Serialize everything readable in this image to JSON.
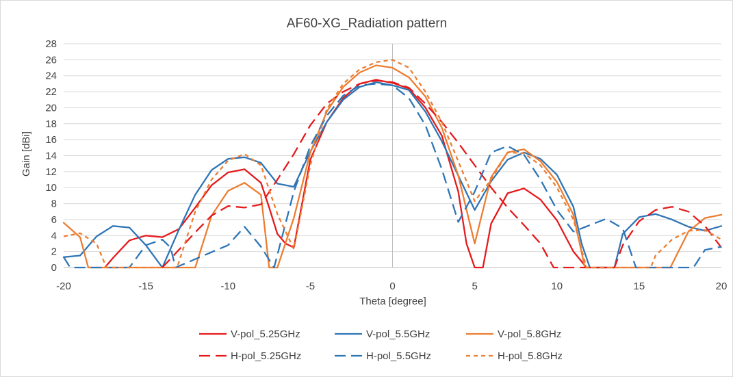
{
  "chart_data": {
    "type": "line",
    "title": "AF60-XG_Radiation pattern",
    "xlabel": "Theta [degree]",
    "ylabel": "Gain [dBi]",
    "xlim": [
      -20,
      20
    ],
    "ylim": [
      0,
      28
    ],
    "xticks": [
      -20,
      -15,
      -10,
      -5,
      0,
      5,
      10,
      15,
      20
    ],
    "yticks": [
      0,
      2,
      4,
      6,
      8,
      10,
      12,
      14,
      16,
      18,
      20,
      22,
      24,
      26,
      28
    ],
    "grid": true,
    "legend_position": "bottom",
    "series": [
      {
        "name": "V-pol_5.25GHz",
        "color": "#e41a1c",
        "dash": "solid",
        "x": [
          -17.5,
          -17,
          -16,
          -15,
          -14,
          -13,
          -12,
          -11,
          -10,
          -9,
          -8,
          -7.5,
          -7,
          -6.5,
          -6,
          -5,
          -4,
          -3,
          -2,
          -1,
          0,
          1,
          2,
          3,
          4,
          4.5,
          5,
          5.5,
          6,
          7,
          8,
          9,
          10,
          11,
          11.8
        ],
        "y": [
          0,
          1.2,
          3.4,
          4,
          3.8,
          4.8,
          7.5,
          10.3,
          11.9,
          12.3,
          10.6,
          7.5,
          4.2,
          3,
          2.5,
          13.5,
          18.2,
          21.2,
          23,
          23.5,
          23.1,
          22.4,
          20,
          16.5,
          9.5,
          3,
          0,
          0,
          5.5,
          9.3,
          9.9,
          8.5,
          5.9,
          2,
          0
        ]
      },
      {
        "name": "V-pol_5.5GHz",
        "color": "#2e75b6",
        "dash": "solid",
        "x": [
          -20,
          -19,
          -18,
          -17,
          -16,
          -15,
          -14,
          -13,
          -12,
          -11,
          -10,
          -9,
          -8,
          -7,
          -6,
          -5,
          -4,
          -3,
          -2,
          -1,
          0,
          1,
          2,
          3,
          4,
          5,
          6,
          7,
          8,
          9,
          10,
          11,
          11.5,
          12,
          13,
          13.5,
          14,
          15,
          16,
          17,
          18,
          19,
          20
        ],
        "y": [
          1.3,
          1.5,
          3.9,
          5.2,
          5,
          2.8,
          0,
          4.7,
          9.1,
          12.2,
          13.6,
          13.8,
          13.1,
          10.5,
          10.1,
          14.5,
          18.2,
          21,
          22.6,
          23.2,
          22.8,
          22.2,
          19.5,
          15.8,
          11.5,
          7.2,
          10.8,
          13.5,
          14.4,
          13.6,
          11.6,
          7.6,
          3,
          0,
          0,
          0,
          4.2,
          6.3,
          6.7,
          6,
          5.1,
          4.6,
          5.2
        ]
      },
      {
        "name": "V-pol_5.8GHz",
        "color": "#ed7d31",
        "dash": "solid",
        "x": [
          -20,
          -19,
          -18.5,
          -12,
          -11,
          -10,
          -9,
          -8,
          -7.5,
          -7,
          -6,
          -5,
          -4,
          -3,
          -2,
          -1,
          0,
          1,
          2,
          3,
          4,
          5,
          6,
          7,
          8,
          9,
          10,
          11,
          11.7,
          16.9,
          18,
          19,
          20
        ],
        "y": [
          5.6,
          3.8,
          0,
          0,
          6.5,
          9.6,
          10.6,
          9.1,
          0,
          0,
          6.2,
          14.4,
          19.5,
          22.6,
          24.4,
          25.3,
          25,
          23.8,
          21.4,
          17.5,
          11.5,
          3,
          11.3,
          14.4,
          14.8,
          13.3,
          10.7,
          6.6,
          0,
          0,
          4.5,
          6.2,
          6.6
        ]
      },
      {
        "name": "H-pol_5.25GHz",
        "color": "#e41a1c",
        "dash": "long",
        "x": [
          -14,
          -13,
          -12,
          -11,
          -10,
          -9,
          -8,
          -7,
          -6,
          -5,
          -4,
          -3,
          -2,
          -1,
          0,
          1,
          2,
          3,
          4,
          5,
          6,
          7,
          8,
          9,
          9.8,
          13.5,
          14,
          15,
          16,
          17,
          18,
          19,
          20
        ],
        "y": [
          0,
          2.2,
          4.4,
          6.5,
          7.7,
          7.5,
          7.9,
          11,
          14.2,
          17.8,
          20.5,
          22,
          23,
          23.4,
          23.2,
          22.5,
          20.5,
          18.2,
          15.6,
          12.8,
          10,
          7.5,
          5.3,
          3,
          0,
          0,
          2.8,
          5.8,
          7.2,
          7.6,
          7,
          5.2,
          2.5
        ]
      },
      {
        "name": "H-pol_5.5GHz",
        "color": "#2e75b6",
        "dash": "long",
        "x": [
          -20,
          -19.6,
          -16,
          -15,
          -14,
          -13.5,
          -13.2,
          -10,
          -9,
          -8,
          -7.2,
          -6,
          -5,
          -4,
          -3,
          -2,
          -1,
          0,
          1,
          2,
          3,
          4,
          5,
          6,
          7,
          8,
          9,
          10,
          11,
          12,
          13,
          14,
          14.8,
          18.3,
          19,
          20
        ],
        "y": [
          1.3,
          0,
          0,
          2.8,
          3.5,
          2.5,
          0,
          2.8,
          5.1,
          2.6,
          0,
          9.5,
          15.2,
          19,
          21.5,
          22.8,
          23,
          22.8,
          21.2,
          17.8,
          12.3,
          5.7,
          9.5,
          14.4,
          15.2,
          14.1,
          11,
          7.2,
          4.5,
          5.3,
          6.1,
          4.9,
          0,
          0,
          2.2,
          2.6
        ]
      },
      {
        "name": "H-pol_5.8GHz",
        "color": "#ed7d31",
        "dash": "short",
        "x": [
          -20,
          -19,
          -18,
          -17.4,
          -13.1,
          -12,
          -11,
          -10,
          -9,
          -8,
          -7,
          -6,
          -5,
          -4,
          -3,
          -2,
          -1,
          0,
          1,
          2,
          3,
          4,
          5,
          6,
          7,
          8,
          9,
          10,
          11,
          11.8,
          15.7,
          16,
          17,
          18,
          19,
          20
        ],
        "y": [
          3.9,
          4.3,
          3,
          0,
          0,
          7,
          11,
          13.4,
          14.2,
          12.8,
          6.7,
          2.3,
          12.8,
          19.8,
          23,
          24.8,
          25.7,
          26,
          25,
          22,
          18.2,
          13.3,
          8.3,
          11,
          14.4,
          14.3,
          12.8,
          10,
          6,
          0,
          0,
          1.5,
          3.5,
          4.6,
          4.7,
          3.5
        ]
      }
    ]
  }
}
